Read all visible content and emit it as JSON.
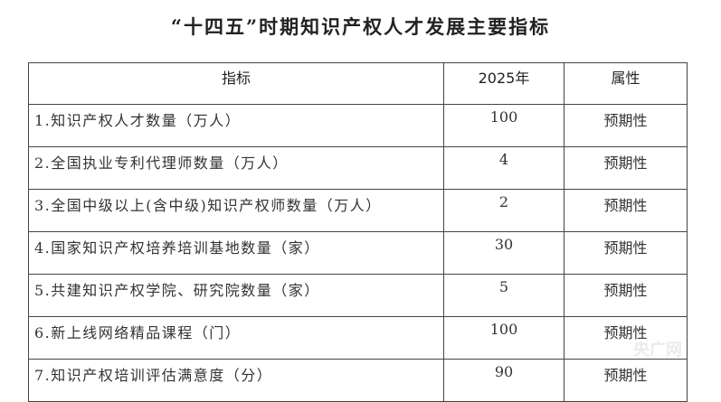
{
  "title": "“十四五”时期知识产权人才发展主要指标",
  "table": {
    "headers": [
      "指标",
      "2025年",
      "属性"
    ],
    "rows": [
      [
        "1.知识产权人才数量（万人）",
        "100",
        "预期性"
      ],
      [
        "2.全国执业专利代理师数量（万人）",
        "4",
        "预期性"
      ],
      [
        "3.全国中级以上(含中级)知识产权师数量（万人）",
        "2",
        "预期性"
      ],
      [
        "4.国家知识产权培养培训基地数量（家）",
        "30",
        "预期性"
      ],
      [
        "5.共建知识产权学院、研究院数量（家）",
        "5",
        "预期性"
      ],
      [
        "6.新上线网络精品课程（门）",
        "100",
        "预期性"
      ],
      [
        "7.知识产权培训评估满意度（分）",
        "90",
        "预期性"
      ]
    ]
  },
  "watermark": "央广网"
}
